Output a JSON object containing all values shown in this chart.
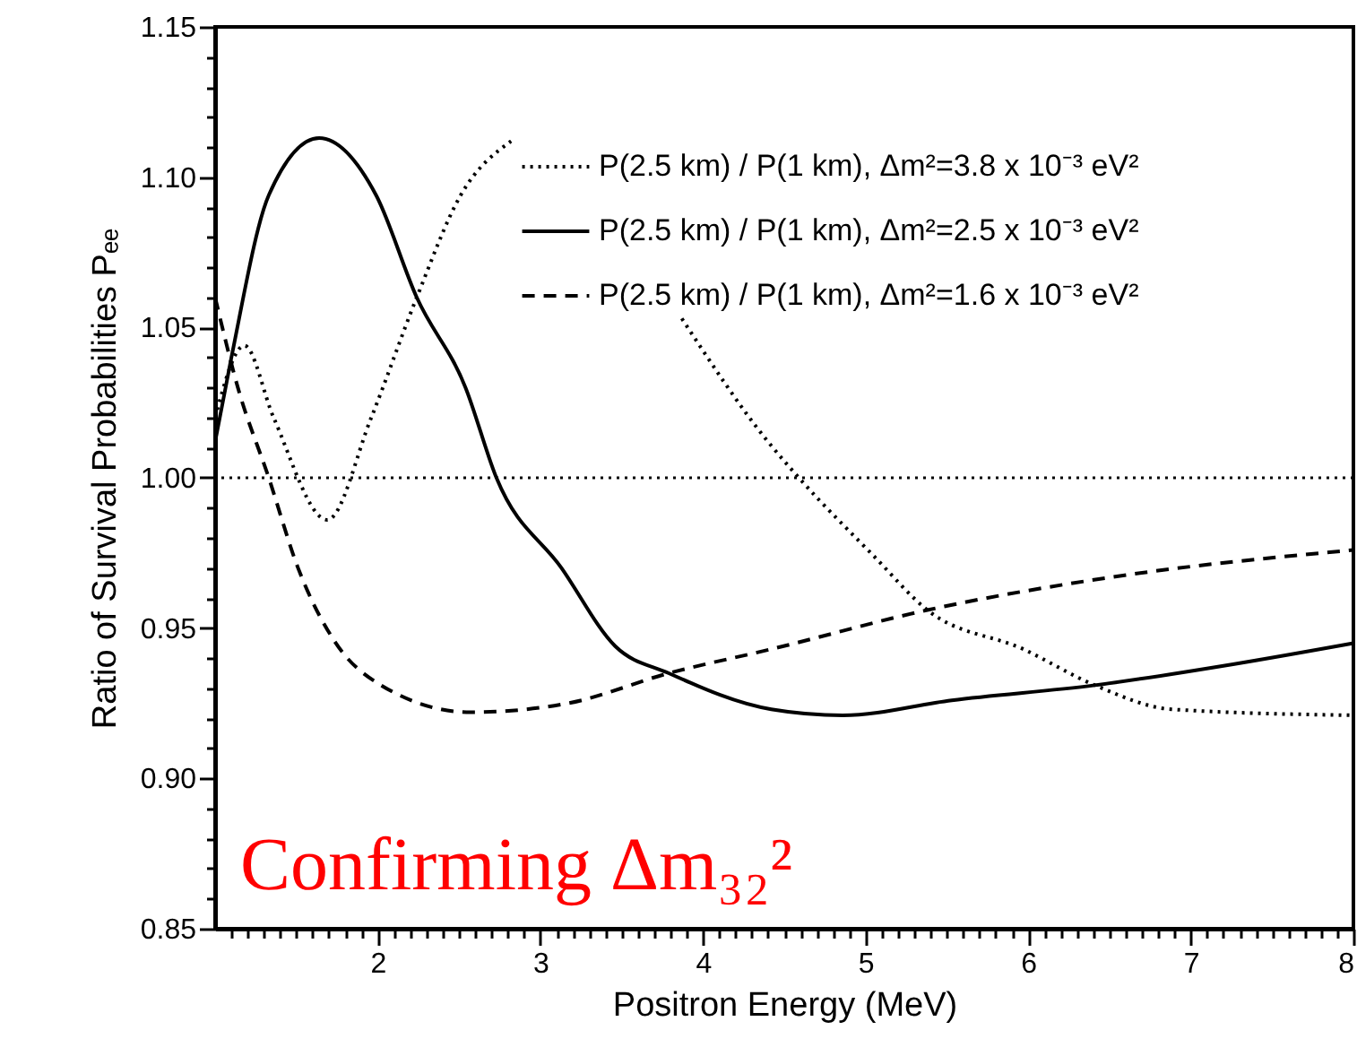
{
  "chart_data": {
    "type": "line",
    "xlabel": "Positron Energy (MeV)",
    "ylabel": "Ratio of Survival Probabilities Pₑₑ",
    "annotations": [
      "Confirming Δm₃₂²"
    ],
    "xlim": [
      1,
      8
    ],
    "ylim": [
      0.85,
      1.15
    ],
    "xticks": [
      {
        "value": 1.1,
        "label": null
      },
      {
        "value": 1.2,
        "label": null
      },
      {
        "value": 1.3,
        "label": null
      },
      {
        "value": 1.4,
        "label": null
      },
      {
        "value": 1.5,
        "label": null
      },
      {
        "value": 1.6,
        "label": null
      },
      {
        "value": 1.7,
        "label": null
      },
      {
        "value": 1.8,
        "label": null
      },
      {
        "value": 1.9,
        "label": null
      },
      2,
      {
        "value": 2.1,
        "label": null
      },
      {
        "value": 2.2,
        "label": null
      },
      {
        "value": 2.3,
        "label": null
      },
      {
        "value": 2.4,
        "label": null
      },
      {
        "value": 2.5,
        "label": null
      },
      {
        "value": 2.6,
        "label": null
      },
      {
        "value": 2.7,
        "label": null
      },
      {
        "value": 2.8,
        "label": null
      },
      {
        "value": 2.9,
        "label": null
      },
      3,
      {
        "value": 3.1,
        "label": null
      },
      {
        "value": 3.2,
        "label": null
      },
      {
        "value": 3.3,
        "label": null
      },
      {
        "value": 3.4,
        "label": null
      },
      {
        "value": 3.5,
        "label": null
      },
      {
        "value": 3.6,
        "label": null
      },
      {
        "value": 3.7,
        "label": null
      },
      {
        "value": 3.8,
        "label": null
      },
      {
        "value": 3.9,
        "label": null
      },
      4,
      {
        "value": 4.1,
        "label": null
      },
      {
        "value": 4.2,
        "label": null
      },
      {
        "value": 4.3,
        "label": null
      },
      {
        "value": 4.4,
        "label": null
      },
      {
        "value": 4.5,
        "label": null
      },
      {
        "value": 4.6,
        "label": null
      },
      {
        "value": 4.7,
        "label": null
      },
      {
        "value": 4.8,
        "label": null
      },
      {
        "value": 4.9,
        "label": null
      },
      5,
      {
        "value": 5.1,
        "label": null
      },
      {
        "value": 5.2,
        "label": null
      },
      {
        "value": 5.3,
        "label": null
      },
      {
        "value": 5.4,
        "label": null
      },
      {
        "value": 5.5,
        "label": null
      },
      {
        "value": 5.6,
        "label": null
      },
      {
        "value": 5.7,
        "label": null
      },
      {
        "value": 5.8,
        "label": null
      },
      {
        "value": 5.9,
        "label": null
      },
      6,
      {
        "value": 6.1,
        "label": null
      },
      {
        "value": 6.2,
        "label": null
      },
      {
        "value": 6.3,
        "label": null
      },
      {
        "value": 6.4,
        "label": null
      },
      {
        "value": 6.5,
        "label": null
      },
      {
        "value": 6.6,
        "label": null
      },
      {
        "value": 6.7,
        "label": null
      },
      {
        "value": 6.8,
        "label": null
      },
      {
        "value": 6.9,
        "label": null
      },
      7,
      {
        "value": 7.1,
        "label": null
      },
      {
        "value": 7.2,
        "label": null
      },
      {
        "value": 7.3,
        "label": null
      },
      {
        "value": 7.4,
        "label": null
      },
      {
        "value": 7.5,
        "label": null
      },
      {
        "value": 7.6,
        "label": null
      },
      {
        "value": 7.7,
        "label": null
      },
      {
        "value": 7.8,
        "label": null
      },
      {
        "value": 7.9,
        "label": null
      },
      8
    ],
    "yticks": [
      0.85,
      {
        "value": 0.86,
        "label": null
      },
      {
        "value": 0.87,
        "label": null
      },
      {
        "value": 0.88,
        "label": null
      },
      {
        "value": 0.89,
        "label": null
      },
      {
        "value": 0.9,
        "label": "0.90"
      },
      {
        "value": 0.91,
        "label": null
      },
      {
        "value": 0.92,
        "label": null
      },
      {
        "value": 0.93,
        "label": null
      },
      {
        "value": 0.94,
        "label": null
      },
      0.95,
      {
        "value": 0.96,
        "label": null
      },
      {
        "value": 0.97,
        "label": null
      },
      {
        "value": 0.98,
        "label": null
      },
      {
        "value": 0.99,
        "label": null
      },
      {
        "value": 1.0,
        "label": "1.00"
      },
      {
        "value": 1.01,
        "label": null
      },
      {
        "value": 1.02,
        "label": null
      },
      {
        "value": 1.03,
        "label": null
      },
      {
        "value": 1.04,
        "label": null
      },
      1.05,
      {
        "value": 1.06,
        "label": null
      },
      {
        "value": 1.07,
        "label": null
      },
      {
        "value": 1.08,
        "label": null
      },
      {
        "value": 1.09,
        "label": null
      },
      {
        "value": 1.1,
        "label": "1.10"
      },
      {
        "value": 1.11,
        "label": null
      },
      {
        "value": 1.12,
        "label": null
      },
      {
        "value": 1.13,
        "label": null
      },
      {
        "value": 1.14,
        "label": null
      },
      1.15
    ],
    "legend": "top right",
    "ref_lines": [
      {
        "axis": "y",
        "value": 1.0,
        "color": "#000000",
        "line_style": "dotted"
      }
    ],
    "series": [
      {
        "name": "P(2.5 km) / P(1 km), Δm²=3.8 x 10⁻³ eV²",
        "color": "#000000",
        "line_style": "dotted",
        "x": [
          1.0,
          1.18,
          1.36,
          1.69,
          1.96,
          2.24,
          2.51,
          2.82,
          3.3,
          3.87,
          4.4,
          4.59,
          5.05,
          5.38,
          5.97,
          6.41,
          6.88,
          8.0
        ],
        "values": [
          1.02,
          1.044,
          1.02,
          0.986,
          1.02,
          1.06,
          1.094,
          1.112,
          null,
          1.053,
          1.012,
          1.0,
          0.974,
          0.956,
          0.943,
          0.931,
          0.923,
          0.921
        ]
      },
      {
        "name": "P(2.5 km) / P(1 km), Δm²=2.5 x 10⁻³ eV²",
        "color": "#000000",
        "line_style": "solid",
        "x": [
          1.0,
          1.1,
          1.33,
          1.64,
          1.99,
          2.24,
          2.54,
          2.73,
          3.13,
          3.46,
          3.79,
          4.42,
          4.86,
          5.53,
          6.41,
          7.26,
          8.0
        ],
        "values": [
          1.012,
          1.04,
          1.094,
          1.113,
          1.094,
          1.06,
          1.03,
          1.0,
          0.97,
          0.944,
          0.935,
          0.923,
          0.921,
          0.926,
          0.931,
          0.938,
          0.945
        ]
      },
      {
        "name": "P(2.5 km) / P(1 km), Δm²=1.6 x 10⁻³ eV²",
        "color": "#000000",
        "line_style": "dashed",
        "x": [
          1.0,
          1.14,
          1.33,
          1.51,
          1.73,
          2.02,
          2.57,
          3.17,
          3.79,
          4.42,
          5.38,
          6.52,
          8.0
        ],
        "values": [
          1.06,
          1.03,
          1.0,
          0.97,
          0.946,
          0.931,
          0.922,
          0.925,
          0.935,
          0.943,
          0.956,
          0.967,
          0.976
        ]
      }
    ]
  }
}
